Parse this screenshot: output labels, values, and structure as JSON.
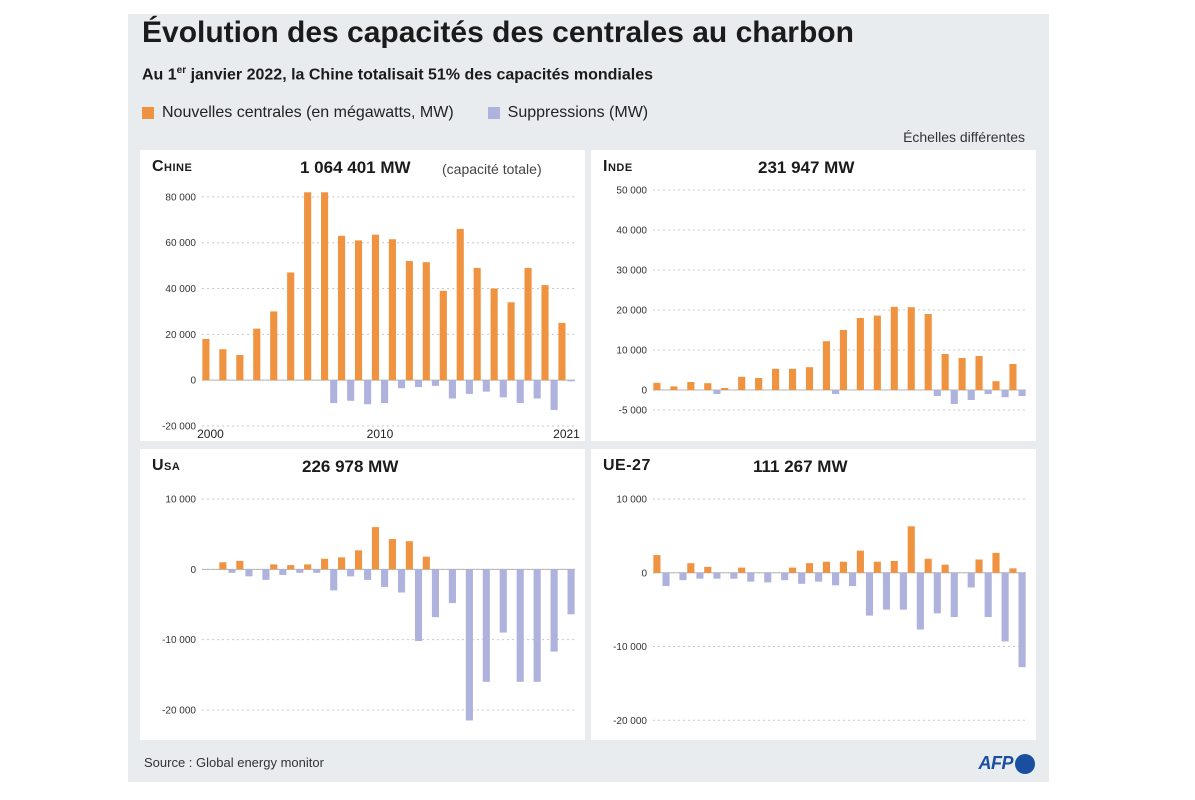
{
  "header": {
    "title": "Évolution des capacités des centrales au charbon",
    "subtitle_pre": "Au 1",
    "subtitle_sup": "er",
    "subtitle_post": " janvier 2022, la Chine totalisait 51% des capacités mondiales",
    "legend_new": "Nouvelles centrales (en mégawatts, MW)",
    "legend_removed": "Suppressions (MW)",
    "scales_note": "Échelles différentes"
  },
  "colors": {
    "new": "#ef9340",
    "removed": "#aeb2dc",
    "background": "#e9ecee",
    "panel": "#ffffff"
  },
  "footer": {
    "source": "Source : Global energy monitor",
    "logo": "AFP"
  },
  "chart_data": [
    {
      "type": "bar",
      "title": "Chine",
      "total": "1 064 401 MW",
      "note": "(capacité totale)",
      "x": [
        2000,
        2001,
        2002,
        2003,
        2004,
        2005,
        2006,
        2007,
        2008,
        2009,
        2010,
        2011,
        2012,
        2013,
        2014,
        2015,
        2016,
        2017,
        2018,
        2019,
        2020,
        2021
      ],
      "x_tick_labels": [
        "2000",
        "2010",
        "2021"
      ],
      "series": [
        {
          "values": [
            18000,
            13500,
            11000,
            22500,
            30000,
            47000,
            82000,
            82000,
            63000,
            61000,
            63500,
            61500,
            52000,
            51500,
            39000,
            66000,
            49000,
            40000,
            34000,
            49000,
            41500,
            25000
          ]
        },
        {
          "values": [
            0,
            0,
            0,
            0,
            0,
            0,
            0,
            -10000,
            -9000,
            -10500,
            -10000,
            -3500,
            -3000,
            -2500,
            -8000,
            -6000,
            -5000,
            -7500,
            -10000,
            -8000,
            -13000,
            -500
          ]
        }
      ],
      "y_ticks": [
        -20000,
        0,
        20000,
        40000,
        60000,
        80000
      ],
      "y_tick_labels": [
        "-20 000",
        "0",
        "20 000",
        "40 000",
        "60 000",
        "80 000"
      ],
      "ylim": [
        -20000,
        83000
      ]
    },
    {
      "type": "bar",
      "title": "Inde",
      "total": "231 947 MW",
      "x": [
        2000,
        2001,
        2002,
        2003,
        2004,
        2005,
        2006,
        2007,
        2008,
        2009,
        2010,
        2011,
        2012,
        2013,
        2014,
        2015,
        2016,
        2017,
        2018,
        2019,
        2020,
        2021
      ],
      "series": [
        {
          "values": [
            1800,
            900,
            2000,
            1700,
            500,
            3300,
            3000,
            5300,
            5300,
            5700,
            12200,
            15000,
            18000,
            18600,
            20800,
            20700,
            19000,
            9000,
            8000,
            8500,
            2200,
            6500
          ]
        },
        {
          "values": [
            0,
            0,
            0,
            -1000,
            0,
            0,
            0,
            0,
            0,
            0,
            -1000,
            0,
            0,
            0,
            0,
            0,
            -1500,
            -3500,
            -2500,
            -1000,
            -1800,
            -1500
          ]
        }
      ],
      "y_ticks": [
        -5000,
        0,
        10000,
        20000,
        30000,
        40000,
        50000
      ],
      "y_tick_labels": [
        "-5 000",
        "0",
        "10 000",
        "20 000",
        "30 000",
        "40 000",
        "50 000"
      ],
      "ylim": [
        -5000,
        50000
      ]
    },
    {
      "type": "bar",
      "title": "Usa",
      "total": "226 978 MW",
      "x": [
        2000,
        2001,
        2002,
        2003,
        2004,
        2005,
        2006,
        2007,
        2008,
        2009,
        2010,
        2011,
        2012,
        2013,
        2014,
        2015,
        2016,
        2017,
        2018,
        2019,
        2020,
        2021
      ],
      "series": [
        {
          "values": [
            0,
            1000,
            1200,
            0,
            700,
            600,
            700,
            1500,
            1700,
            2700,
            6000,
            4300,
            4000,
            1800,
            0,
            0,
            0,
            0,
            0,
            0,
            0,
            0
          ]
        },
        {
          "values": [
            0,
            -500,
            -1000,
            -1500,
            -800,
            -500,
            -500,
            -3000,
            -1000,
            -1500,
            -2500,
            -3300,
            -10200,
            -6800,
            -4800,
            -21500,
            -16000,
            -9000,
            -16000,
            -16000,
            -11700,
            -6400
          ]
        }
      ],
      "y_ticks": [
        -20000,
        -10000,
        0,
        10000
      ],
      "y_tick_labels": [
        "-20 000",
        "-10 000",
        "0",
        "10 000"
      ],
      "ylim": [
        -22000,
        10000
      ]
    },
    {
      "type": "bar",
      "title": "UE-27",
      "total": "111 267 MW",
      "x": [
        2000,
        2001,
        2002,
        2003,
        2004,
        2005,
        2006,
        2007,
        2008,
        2009,
        2010,
        2011,
        2012,
        2013,
        2014,
        2015,
        2016,
        2017,
        2018,
        2019,
        2020,
        2021
      ],
      "series": [
        {
          "values": [
            2400,
            0,
            1300,
            800,
            0,
            700,
            0,
            0,
            700,
            1300,
            1500,
            1500,
            3000,
            1500,
            1600,
            6300,
            1900,
            1100,
            0,
            1800,
            2700,
            600
          ]
        },
        {
          "values": [
            -1800,
            -1000,
            -800,
            -800,
            -800,
            -1200,
            -1300,
            -1000,
            -1500,
            -1200,
            -1700,
            -1800,
            -5800,
            -5000,
            -5000,
            -7700,
            -5500,
            -6000,
            -2000,
            -6000,
            -9300,
            -12800
          ]
        }
      ],
      "y_ticks": [
        -20000,
        -10000,
        0,
        10000
      ],
      "y_tick_labels": [
        "-20 000",
        "-10 000",
        "0",
        "10 000"
      ],
      "ylim": [
        -20500,
        10000
      ]
    }
  ]
}
